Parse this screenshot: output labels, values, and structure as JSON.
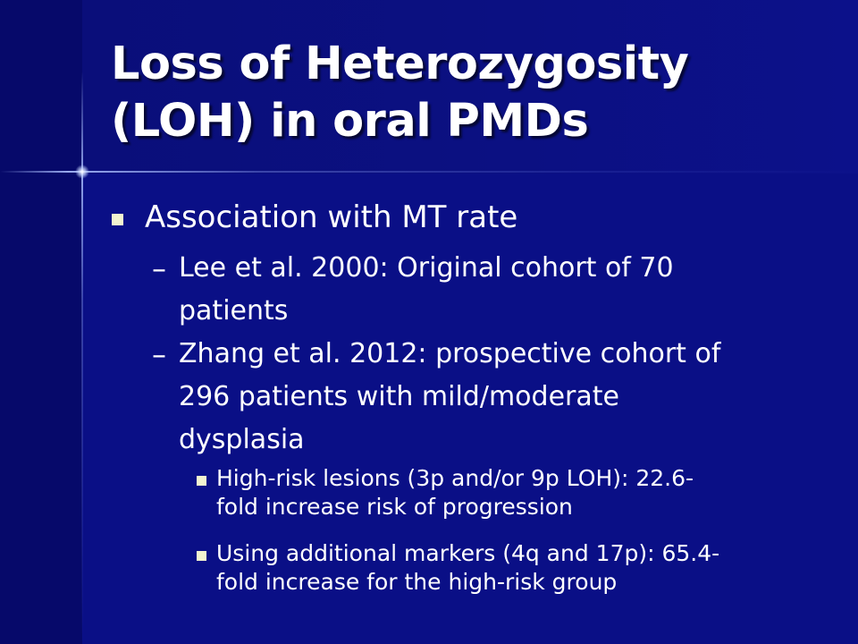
{
  "slide": {
    "title_lines": [
      "Loss of Heterozygosity",
      "(LOH) in oral PMDs"
    ],
    "level1": {
      "text": "Association with MT rate"
    },
    "level2_marker": "–",
    "level2": [
      {
        "lines": [
          "Lee et al. 2000: Original cohort of 70",
          "patients"
        ]
      },
      {
        "lines": [
          "Zhang et al. 2012: prospective cohort of",
          "296 patients with mild/moderate",
          "dysplasia"
        ]
      }
    ],
    "level3": [
      {
        "lines": [
          "High-risk lesions (3p and/or 9p LOH): 22.6-",
          "fold increase risk of progression"
        ]
      },
      {
        "lines": [
          "Using additional markers (4q and 17p): 65.4-",
          "fold increase for the high-risk group"
        ]
      }
    ]
  },
  "colors": {
    "background": "#0a0f86",
    "text": "#ffffff",
    "bullet": "#f3f3d0"
  }
}
